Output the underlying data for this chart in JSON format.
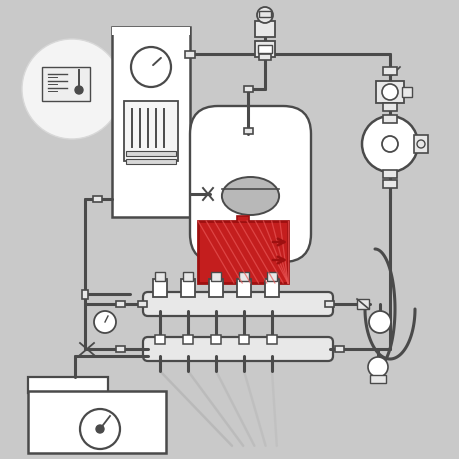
{
  "bg_color": "#c9c9c9",
  "line_color": "#4a4a4a",
  "white": "#ffffff",
  "red": "#c41e1e",
  "red_dark": "#9e1010",
  "light_gray": "#e8e8e8",
  "mid_gray": "#b8b8b8",
  "dark_gray": "#888888",
  "circle_bg": "#f4f4f4",
  "figsize": [
    4.6,
    4.6
  ],
  "dpi": 100
}
